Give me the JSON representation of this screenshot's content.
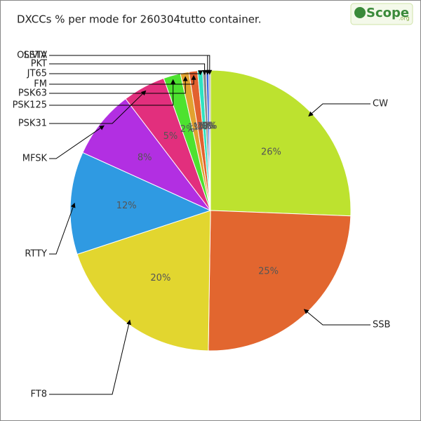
{
  "logo": "Scope",
  "logo_suffix": ".org",
  "chart_data": {
    "type": "pie",
    "title": "DXCCs % per mode for 260304tutto container.",
    "categories": [
      "CW",
      "SSB",
      "FT8",
      "RTTY",
      "MFSK",
      "PSK31",
      "PSK125",
      "PSK63",
      "FM",
      "JT65",
      "PKT",
      "SSTV",
      "OLIVIA"
    ],
    "values": [
      26,
      25,
      20,
      12,
      8,
      5,
      2,
      1,
      1,
      0.6,
      0.4,
      0.3,
      0.2
    ],
    "value_labels": [
      "26%",
      "25%",
      "20%",
      "12%",
      "8%",
      "5%",
      "2%",
      "1%",
      "1%",
      "1%",
      "0%",
      "0%",
      "0%"
    ],
    "colors": [
      "#bde22f",
      "#e2662f",
      "#e2d62f",
      "#2f9ae2",
      "#b22fe2",
      "#e22f7d",
      "#4de22f",
      "#e2a22f",
      "#e2612f",
      "#2fe2c0",
      "#8a8a8a",
      "#2f5fe2",
      "#a0a0a0"
    ]
  }
}
